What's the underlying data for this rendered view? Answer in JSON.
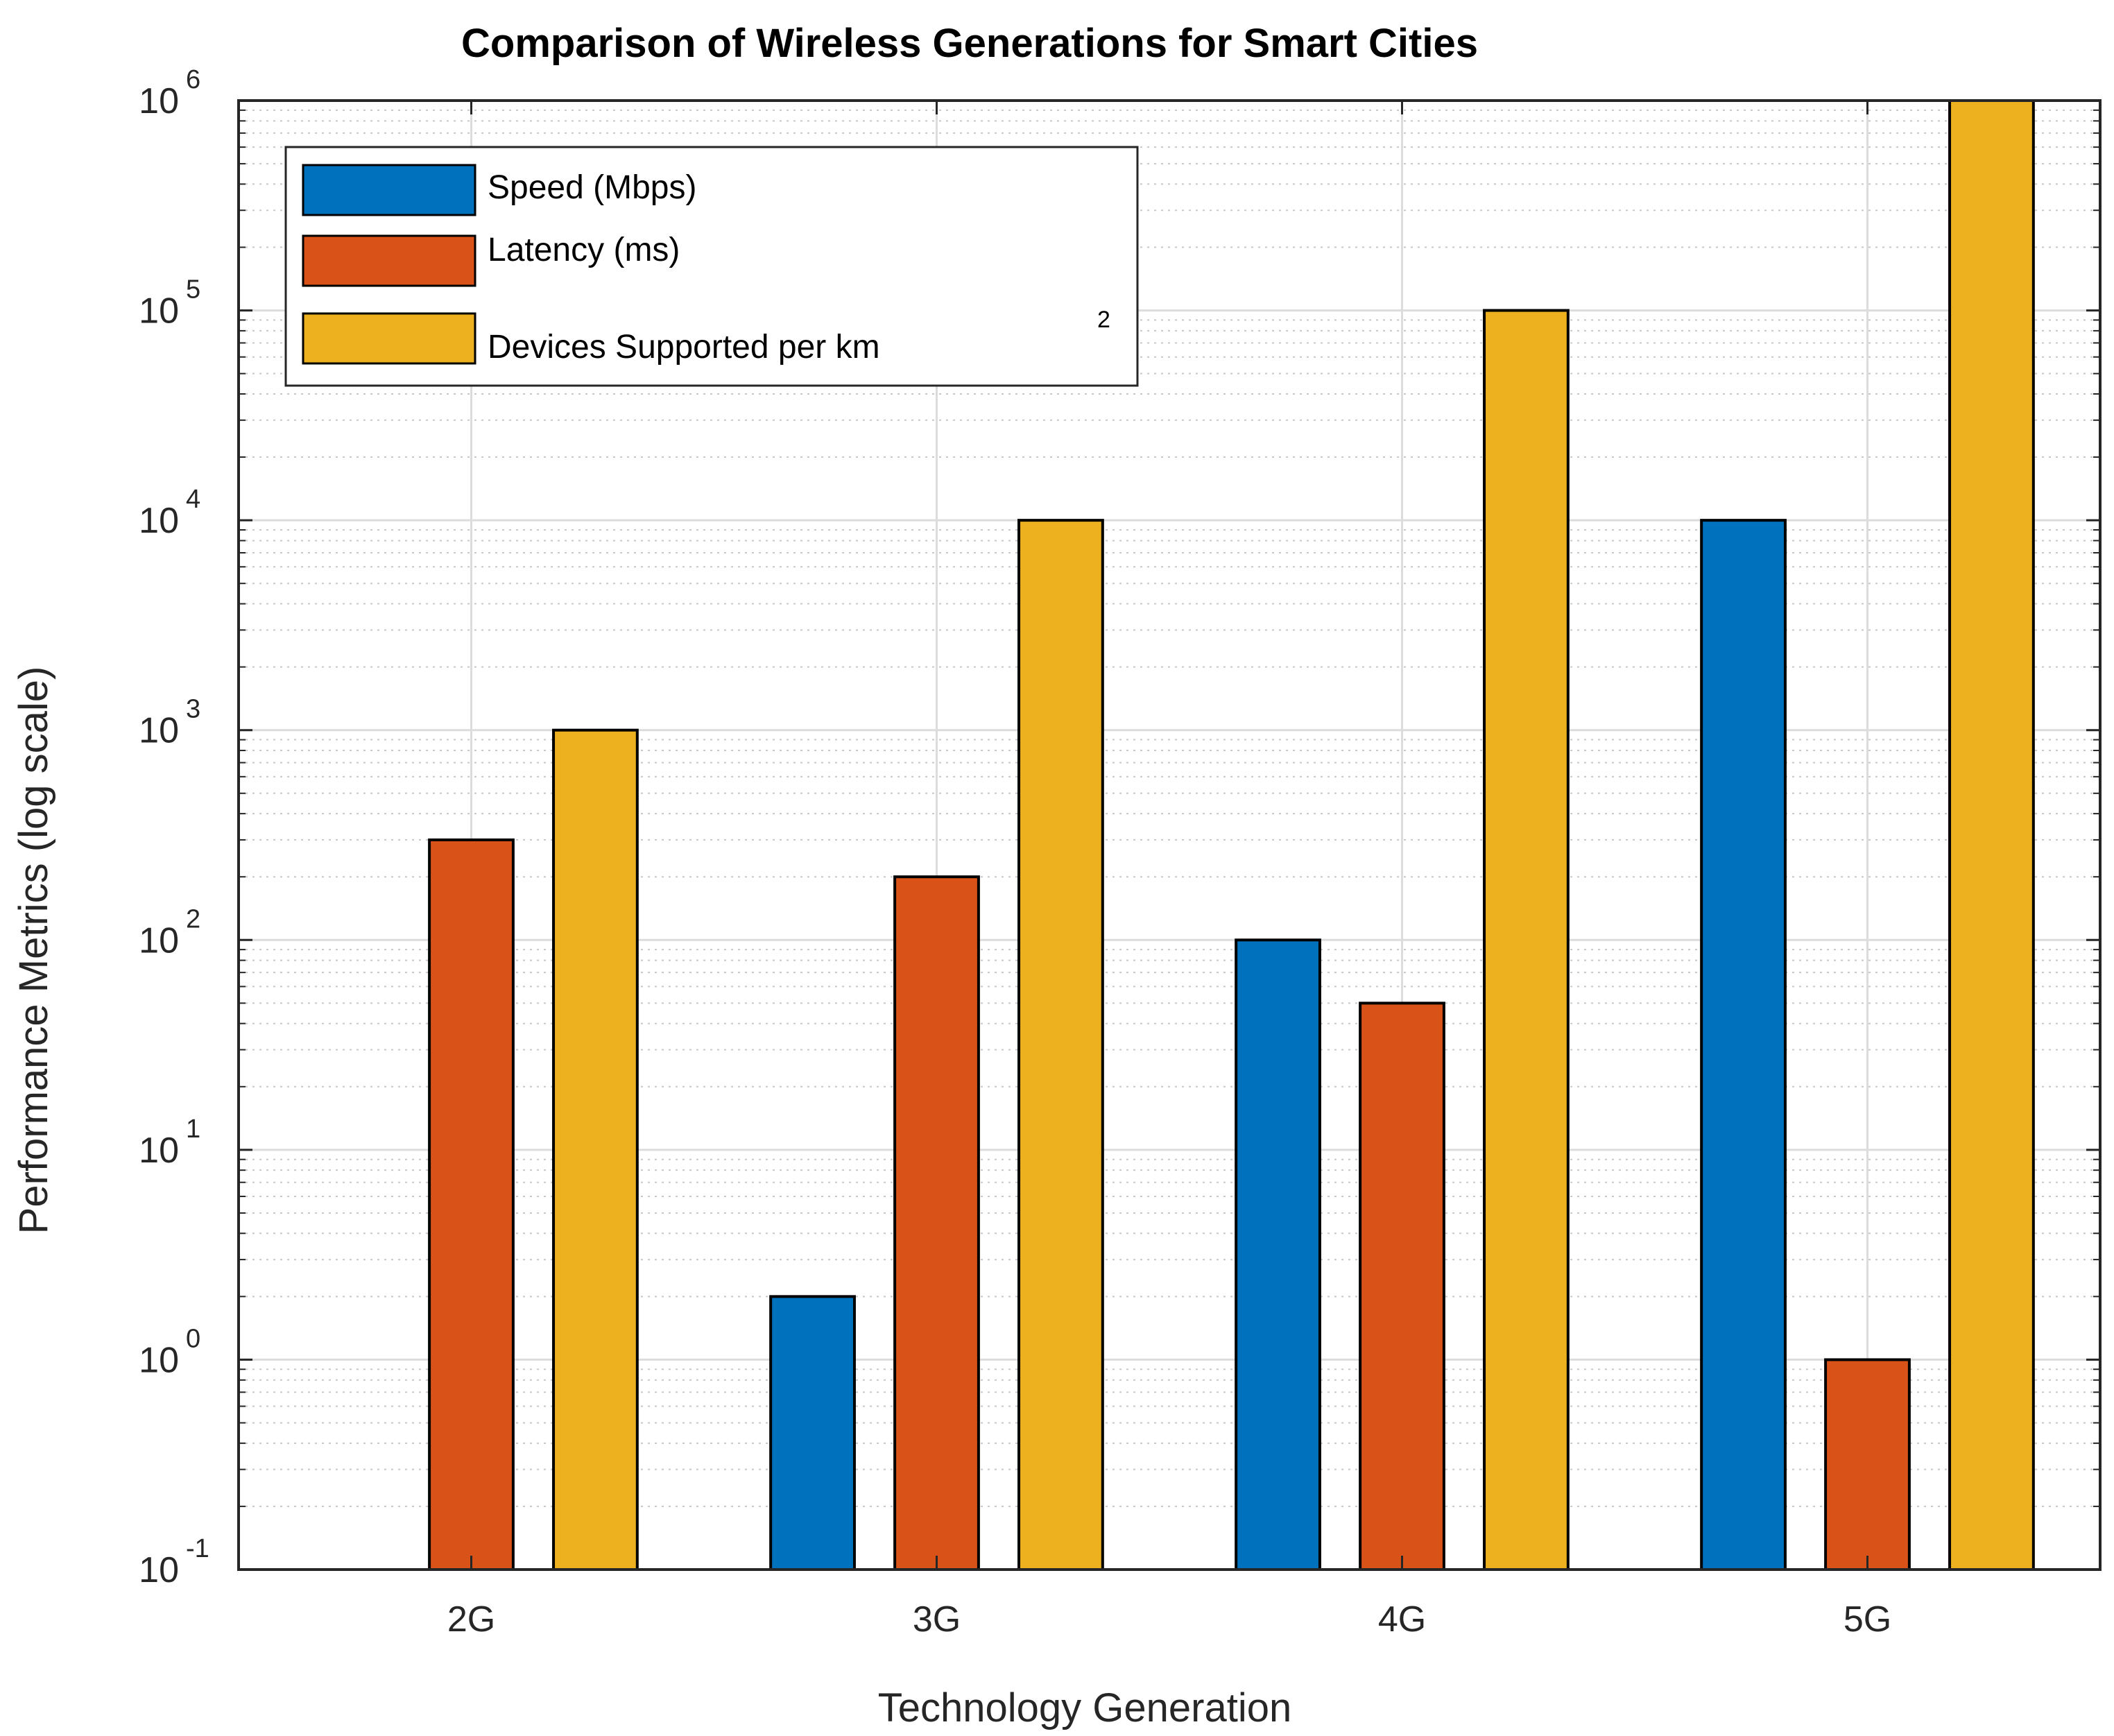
{
  "chart_data": {
    "type": "bar",
    "title": "Comparison of Wireless Generations for Smart Cities",
    "xlabel": "Technology Generation",
    "ylabel": "Performance Metrics (log scale)",
    "yscale": "log",
    "ylim": [
      0.1,
      1000000
    ],
    "grid": true,
    "minor_grid": true,
    "legend_position": "top-left",
    "categories": [
      "2G",
      "3G",
      "4G",
      "5G"
    ],
    "series": [
      {
        "name": "Speed (Mbps)",
        "color": "#0072BD",
        "values": [
          0.1,
          2,
          100,
          10000
        ]
      },
      {
        "name": "Latency (ms)",
        "color": "#D95319",
        "values": [
          300,
          200,
          50,
          1
        ]
      },
      {
        "name": "Devices Supported per km",
        "name_superscript": "2",
        "color": "#EDB120",
        "values": [
          1000,
          10000,
          100000,
          1000000
        ]
      }
    ],
    "yticks": [
      {
        "base": "10",
        "exp": "-1"
      },
      {
        "base": "10",
        "exp": "0"
      },
      {
        "base": "10",
        "exp": "1"
      },
      {
        "base": "10",
        "exp": "2"
      },
      {
        "base": "10",
        "exp": "3"
      },
      {
        "base": "10",
        "exp": "4"
      },
      {
        "base": "10",
        "exp": "5"
      },
      {
        "base": "10",
        "exp": "6"
      }
    ]
  }
}
